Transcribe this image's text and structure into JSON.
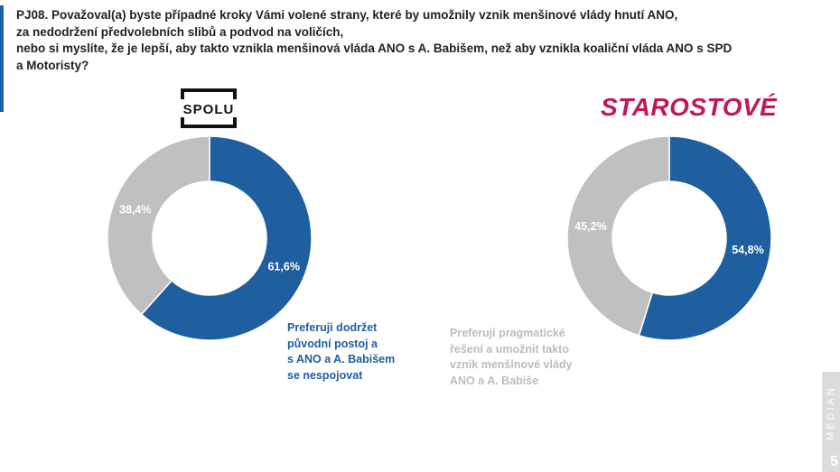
{
  "question": {
    "lines": [
      "PJ08. Považoval(a) byste případné kroky Vámi volené strany, které by umožnily vznik menšinové vlády hnutí ANO,",
      "za nedodržení předvolebních slibů a podvod na voličích,",
      "nebo si myslíte, že je lepší, aby takto vznikla menšinová vláda ANO s A. Babišem, než aby vznikla koaliční vláda ANO s SPD",
      "a Motoristy?"
    ]
  },
  "logos": {
    "spolu": "SPOLU",
    "starostove": "STAROSTOVÉ"
  },
  "colors": {
    "blue": "#1f5fa0",
    "grey": "#c0c0c0",
    "magenta": "#c2185b"
  },
  "chart_data": [
    {
      "type": "pie",
      "variant": "donut",
      "title": "SPOLU",
      "categories": [
        "Preferuji dodržet původní postoj a s ANO a A. Babišem se nespojovat",
        "Preferuji pragmatické řešení a umožnit takto vznik menšinové vlády ANO a A. Babiše"
      ],
      "values": [
        61.6,
        38.4
      ],
      "labels": [
        "61,6%",
        "38,4%"
      ]
    },
    {
      "type": "pie",
      "variant": "donut",
      "title": "STAROSTOVÉ",
      "categories": [
        "Preferuji dodržet původní postoj a s ANO a A. Babišem se nespojovat",
        "Preferuji pragmatické řešení a umožnit takto vznik menšinové vlády ANO a A. Babiše"
      ],
      "values": [
        54.8,
        45.2
      ],
      "labels": [
        "54,8%",
        "45,2%"
      ]
    }
  ],
  "legend": {
    "blue_lines": [
      "Preferuji dodržet",
      "původní postoj a",
      "s ANO a A. Babišem",
      "se  nespojovat"
    ],
    "grey_lines": [
      "Preferuji pragmatické",
      "řešení a umožnit takto",
      "vznik menšinové vlády",
      "ANO a A. Babiše"
    ]
  },
  "footer": {
    "brand": "MEDIAN",
    "page": "5"
  }
}
